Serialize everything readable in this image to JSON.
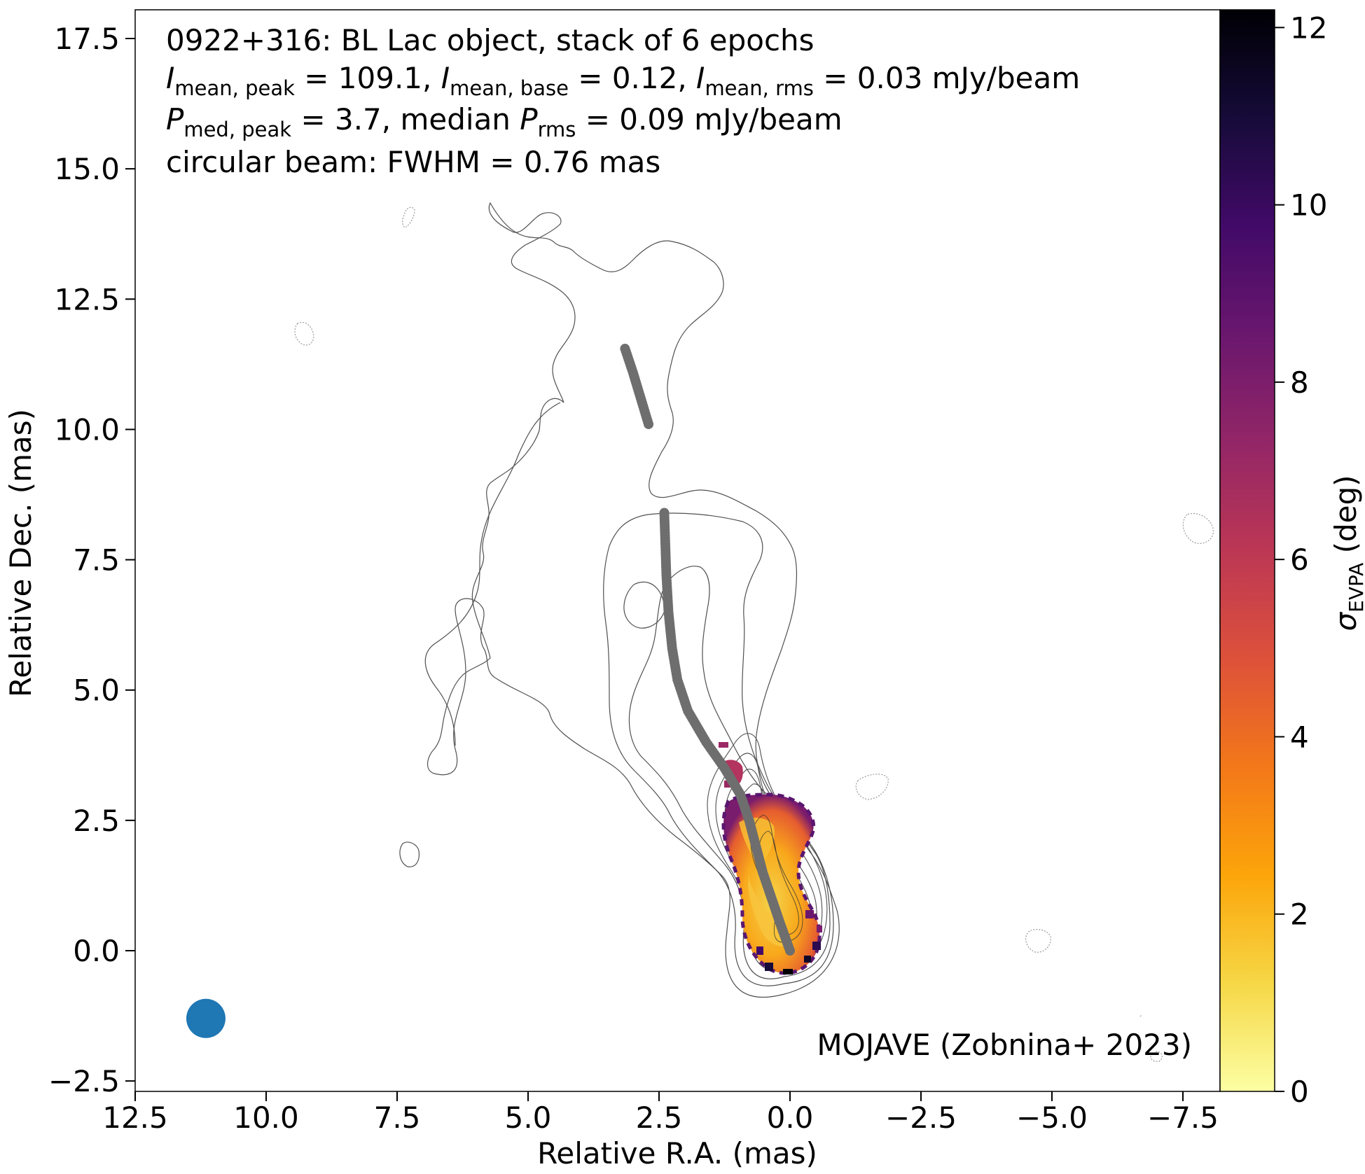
{
  "chart_data": {
    "type": "scatter",
    "header_lines": [
      "0922+316: BL Lac object, stack of 6 epochs",
      "I_mean,peak = 109.1, I_mean,base = 0.12, I_mean,rms = 0.03 mJy/beam",
      "P_med,peak = 3.7, median P_rms = 0.09 mJy/beam",
      "circular beam: FWHM = 0.76 mas"
    ],
    "xlabel": "Relative R.A. (mas)",
    "ylabel": "Relative Dec. (mas)",
    "xlim": [
      12.5,
      -8.2
    ],
    "ylim": [
      -2.6,
      18.0
    ],
    "xticks": [
      "12.5",
      "10.0",
      "7.5",
      "5.0",
      "2.5",
      "0.0",
      "−2.5",
      "−5.0",
      "−7.5"
    ],
    "yticks": [
      "−2.5",
      "0.0",
      "2.5",
      "5.0",
      "7.5",
      "10.0",
      "12.5",
      "15.0",
      "17.5"
    ],
    "colorbar": {
      "label": "σ_EVPA (deg)",
      "range": [
        0,
        12.2
      ],
      "ticks": [
        "0",
        "2",
        "4",
        "6",
        "8",
        "10",
        "12"
      ],
      "colormap": "inferno_r"
    },
    "credit": "MOJAVE (Zobnina+ 2023)",
    "beam": {
      "ra": 11.15,
      "dec": -1.3,
      "fwhm_mas": 0.76,
      "color": "#1f77b4"
    },
    "ridgeline": {
      "color": "#6e6e6e",
      "points": [
        [
          0.0,
          0.0
        ],
        [
          0.18,
          0.5
        ],
        [
          0.35,
          1.0
        ],
        [
          0.52,
          1.5
        ],
        [
          0.65,
          2.0
        ],
        [
          0.78,
          2.5
        ],
        [
          0.95,
          3.0
        ],
        [
          1.25,
          3.5
        ],
        [
          1.6,
          4.0
        ],
        [
          1.95,
          4.6
        ],
        [
          2.15,
          5.2
        ],
        [
          2.25,
          5.8
        ],
        [
          2.32,
          6.5
        ],
        [
          2.36,
          7.2
        ],
        [
          2.38,
          7.8
        ],
        [
          2.4,
          8.4
        ],
        [
          2.7,
          10.1
        ],
        [
          2.85,
          10.6
        ],
        [
          3.0,
          11.1
        ],
        [
          3.15,
          11.55
        ]
      ]
    },
    "evpa_region": [
      {
        "ra": 0.0,
        "dec": 0.0,
        "sigma": 3.6
      },
      {
        "ra": 0.3,
        "dec": 0.5,
        "sigma": 2.4
      },
      {
        "ra": 0.5,
        "dec": 1.0,
        "sigma": 1.6
      },
      {
        "ra": 0.75,
        "dec": 1.6,
        "sigma": 2.2
      },
      {
        "ra": 0.6,
        "dec": 2.1,
        "sigma": 1.6
      },
      {
        "ra": 1.0,
        "dec": 2.3,
        "sigma": 3.4
      },
      {
        "ra": 1.1,
        "dec": 3.5,
        "sigma": 6.8
      }
    ],
    "contour_color": "#505050",
    "negative_contour_color": "#9a9a9a"
  }
}
